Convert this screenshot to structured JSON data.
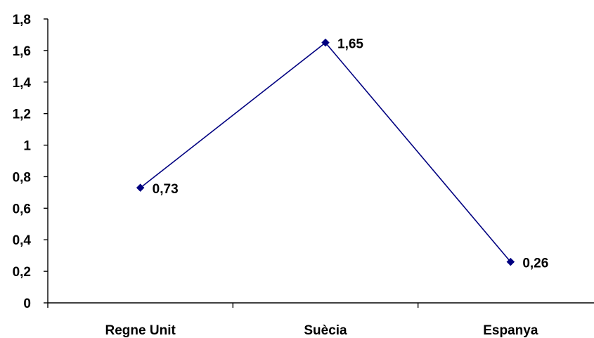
{
  "chart_data": {
    "type": "line",
    "title": "",
    "xlabel": "",
    "ylabel": "",
    "categories": [
      "Regne Unit",
      "Suècia",
      "Espanya"
    ],
    "series": [
      {
        "values": [
          0.73,
          1.65,
          0.26
        ],
        "data_labels": [
          "0,73",
          "1,65",
          "0,26"
        ],
        "color": "#000080",
        "marker": "diamond"
      }
    ],
    "ylim": [
      0,
      1.8
    ],
    "yticks": [
      0,
      0.2,
      0.4,
      0.6,
      0.8,
      1,
      1.2,
      1.4,
      1.6,
      1.8
    ],
    "ytick_labels": [
      "0",
      "0,2",
      "0,4",
      "0,6",
      "0,8",
      "1",
      "1,2",
      "1,4",
      "1,6",
      "1,8"
    ],
    "grid": false,
    "legend": "none",
    "axis_color": "#000000"
  }
}
